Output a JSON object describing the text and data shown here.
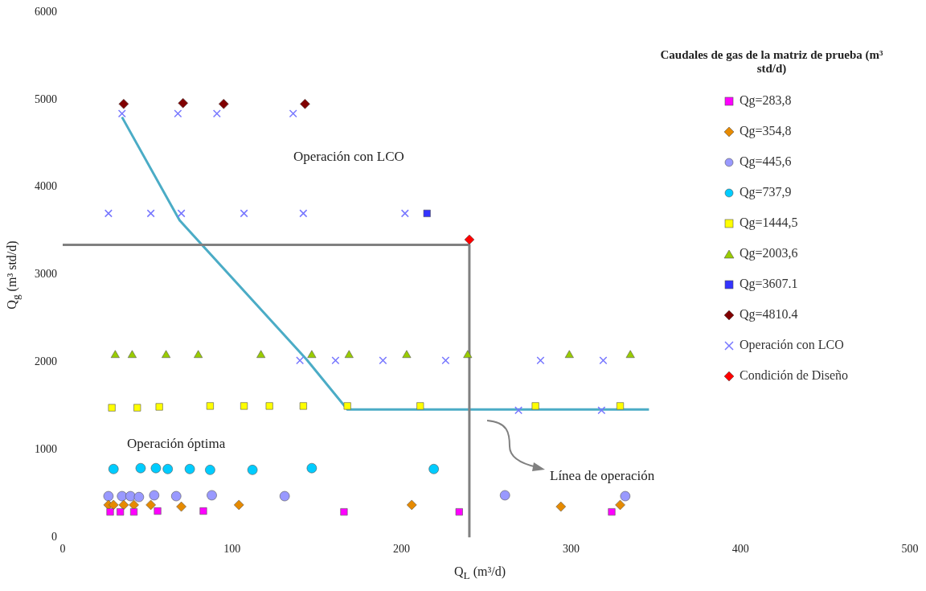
{
  "chart_data": {
    "type": "scatter",
    "xlabel": "Q$_{L}$ (m³/d)",
    "ylabel": "Q$_{g}$ (m³ std/d)",
    "legend_title": "Caudales de gas de la matriz de prueba (m³ std/d)",
    "xlim": [
      0,
      500
    ],
    "xticks": [
      0,
      100,
      200,
      300,
      400,
      500
    ],
    "ylim": [
      0,
      6000
    ],
    "yticks": [
      0,
      1000,
      2000,
      3000,
      4000,
      5000,
      6000
    ],
    "grid": false,
    "legend": "right",
    "series": [
      {
        "name": "Qg=283,8",
        "color": "#ff00ff",
        "marker": "square",
        "x": [
          28,
          34,
          42,
          56,
          83,
          166,
          234,
          324
        ],
        "values": [
          290,
          290,
          290,
          300,
          300,
          290,
          290,
          290
        ]
      },
      {
        "name": "Qg=354,8",
        "color": "#e68a00",
        "marker": "diamond",
        "x": [
          27,
          30,
          36,
          42,
          52,
          70,
          104,
          206,
          294,
          329
        ],
        "values": [
          370,
          370,
          370,
          370,
          370,
          350,
          370,
          370,
          350,
          370
        ]
      },
      {
        "name": "Qg=445,6",
        "color": "#9999ff",
        "marker": "circle",
        "x": [
          27,
          35,
          40,
          45,
          54,
          67,
          88,
          131,
          261,
          332
        ],
        "values": [
          470,
          470,
          470,
          460,
          480,
          470,
          480,
          470,
          480,
          470
        ]
      },
      {
        "name": "Qg=737,9",
        "color": "#00ccff",
        "marker": "circle",
        "x": [
          30,
          46,
          55,
          62,
          75,
          87,
          112,
          147,
          219
        ],
        "values": [
          780,
          790,
          790,
          780,
          780,
          770,
          770,
          790,
          780
        ]
      },
      {
        "name": "Qg=1444,5",
        "color": "#ffff00",
        "marker": "square",
        "x": [
          29,
          44,
          57,
          87,
          107,
          122,
          142,
          168,
          211,
          279,
          329
        ],
        "values": [
          1480,
          1480,
          1490,
          1500,
          1500,
          1500,
          1500,
          1500,
          1500,
          1500,
          1500
        ]
      },
      {
        "name": "Qg=2003,6",
        "color": "#99cc00",
        "marker": "triangle",
        "x": [
          31,
          41,
          61,
          80,
          117,
          147,
          169,
          203,
          239,
          299,
          335
        ],
        "values": [
          2080,
          2080,
          2080,
          2080,
          2080,
          2080,
          2080,
          2080,
          2080,
          2080,
          2080
        ]
      },
      {
        "name": "Qg=3607.1",
        "color": "#3333ff",
        "marker": "square",
        "x": [
          215
        ],
        "values": [
          3700
        ]
      },
      {
        "name": "Qg=4810.4",
        "color": "#800000",
        "marker": "diamond",
        "x": [
          36,
          71,
          95,
          143
        ],
        "values": [
          4950,
          4960,
          4950,
          4950
        ]
      },
      {
        "name": "Operación con LCO",
        "color": "#7777ff",
        "marker": "cross",
        "x": [
          35,
          68,
          91,
          136,
          27,
          52,
          70,
          107,
          142,
          202,
          140,
          161,
          189,
          226,
          282,
          319,
          269,
          318
        ],
        "values": [
          4840,
          4840,
          4840,
          4840,
          3700,
          3700,
          3700,
          3700,
          3700,
          3700,
          2020,
          2020,
          2020,
          2020,
          2020,
          2020,
          1450,
          1450
        ]
      },
      {
        "name": "Condición de Diseño",
        "color": "#ff0000",
        "marker": "diamond",
        "x": [
          240
        ],
        "values": [
          3400
        ]
      },
      {
        "type": "line",
        "color": "#808080",
        "marker": "none",
        "x": [
          0,
          240,
          240
        ],
        "values": [
          3340,
          3340,
          0
        ]
      },
      {
        "type": "line",
        "color": "#4bacc6",
        "marker": "none",
        "x": [
          35,
          69,
          144,
          168,
          346
        ],
        "values": [
          4800,
          3620,
          2030,
          1460,
          1460
        ]
      }
    ],
    "annotations": [
      "Operación con LCO",
      "Operación óptima",
      "Línea de operación"
    ]
  }
}
